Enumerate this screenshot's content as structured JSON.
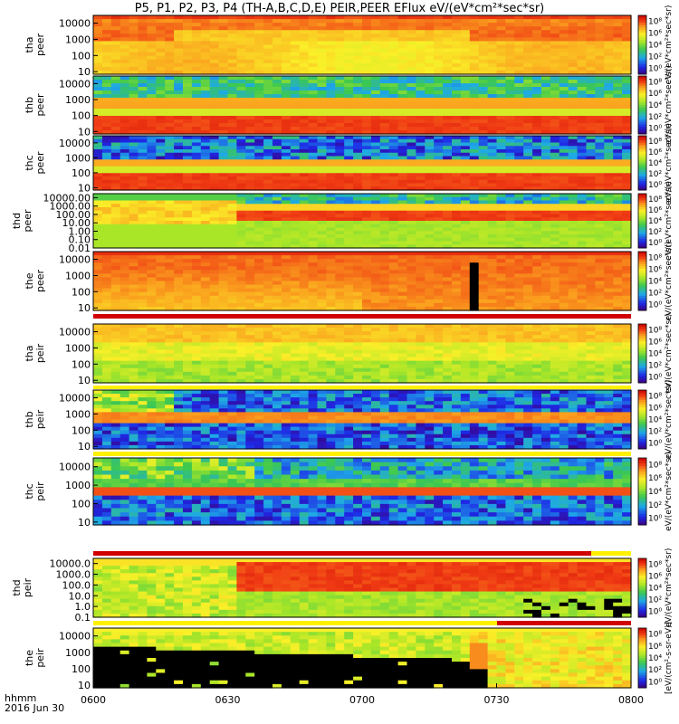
{
  "title": "P5, P1, P2, P3, P4 (TH-A,B,C,D,E) PEIR,PEER EFlux eV/(eV*cm²*sec*sr)",
  "colorbar_unit_label": "eV/(eV*cm²*sec*sr)",
  "colorbar_unit_label_bottom": "[eV/(cm²-s-sr-eV)]",
  "colorbar_ticks": [
    "10⁸",
    "10⁶",
    "10⁴",
    "10²",
    "10⁰"
  ],
  "time_axis": {
    "label_line1": "hhmm",
    "label_line2": "2016 Jun 30",
    "ticks": [
      "0600",
      "0630",
      "0700",
      "0730",
      "0800"
    ]
  },
  "chart_data": {
    "type": "heatmap",
    "title": "P5, P1, P2, P3, P4 (TH-A,B,C,D,E) PEIR,PEER EFlux eV/(eV*cm²*sec*sr)",
    "xlabel": "hhmm 2016 Jun 30",
    "xlim": [
      "0600",
      "0800"
    ],
    "yscale": "log",
    "colorscale": "log",
    "color_range": [
      1,
      100000000
    ],
    "panels": [
      {
        "name": "tha peer",
        "label1": "tha",
        "label2": "peer",
        "yticks": [
          "10000",
          "1000",
          "100",
          "10"
        ],
        "ylim": [
          7,
          30000
        ],
        "style": "tha_peer"
      },
      {
        "name": "thb peer",
        "label1": "thb",
        "label2": "peer",
        "yticks": [
          "10000",
          "1000",
          "100",
          "10"
        ],
        "ylim": [
          7,
          30000
        ],
        "style": "thb_peer"
      },
      {
        "name": "thc peer",
        "label1": "thc",
        "label2": "peer",
        "yticks": [
          "10000",
          "1000",
          "100",
          "10"
        ],
        "ylim": [
          7,
          30000
        ],
        "style": "thc_peer"
      },
      {
        "name": "thd peer",
        "label1": "thd",
        "label2": "peer",
        "yticks": [
          "10000.00",
          "1000.00",
          "100.00",
          "10.00",
          "1.00",
          "0.10",
          "0.01"
        ],
        "ylim": [
          0.01,
          30000
        ],
        "style": "thd_peer"
      },
      {
        "name": "the peer",
        "label1": "the",
        "label2": "peer",
        "yticks": [
          "10000",
          "1000",
          "100",
          "10"
        ],
        "ylim": [
          7,
          30000
        ],
        "style": "the_peer"
      },
      {
        "name": "tha peir",
        "label1": "tha",
        "label2": "peir",
        "yticks": [
          "10000",
          "1000",
          "100",
          "10"
        ],
        "ylim": [
          7,
          30000
        ],
        "style": "tha_peir"
      },
      {
        "name": "thb peir",
        "label1": "thb",
        "label2": "peir",
        "yticks": [
          "10000",
          "1000",
          "100",
          "10"
        ],
        "ylim": [
          7,
          30000
        ],
        "style": "thb_peir"
      },
      {
        "name": "thc peir",
        "label1": "thc",
        "label2": "peir",
        "yticks": [
          "10000",
          "1000",
          "100",
          "10"
        ],
        "ylim": [
          7,
          30000
        ],
        "style": "thc_peir"
      },
      {
        "name": "thd peir",
        "label1": "thd",
        "label2": "peir",
        "yticks": [
          "10000.0",
          "1000.0",
          "100.0",
          "10.0",
          "1.0",
          "0.1"
        ],
        "ylim": [
          0.1,
          30000
        ],
        "style": "thd_peir"
      },
      {
        "name": "the peir",
        "label1": "the",
        "label2": "peir",
        "yticks": [
          "10000",
          "1000",
          "100",
          "10"
        ],
        "ylim": [
          7,
          30000
        ],
        "style": "the_peir"
      }
    ]
  }
}
